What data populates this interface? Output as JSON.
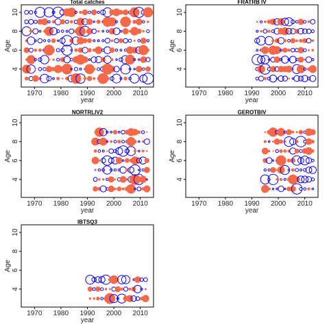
{
  "colors": {
    "positive": "#f4694a",
    "negative": "#0a00f5",
    "frame": "#000000"
  },
  "chart_data": [
    {
      "type": "scatter",
      "title": "Total catches",
      "xlabel": "year",
      "ylabel": "Age",
      "xlim": [
        1965,
        2015
      ],
      "ylim": [
        2.1,
        10.8
      ],
      "xticks": [
        "1970",
        "1980",
        "1990",
        "2000",
        "2010"
      ],
      "yticks": [
        "4",
        "6",
        "8",
        "10"
      ],
      "ages": [
        3,
        4,
        5,
        6,
        7,
        8,
        9,
        10
      ],
      "year_range": [
        1967,
        2013
      ],
      "grid": false
    },
    {
      "type": "scatter",
      "title": "FRATRB IV",
      "xlabel": "year",
      "ylabel": "Age",
      "xlim": [
        1965,
        2015
      ],
      "ylim": [
        2.1,
        10.8
      ],
      "xticks": [
        "1970",
        "1980",
        "1990",
        "2000",
        "2010"
      ],
      "yticks": [
        "4",
        "6",
        "8",
        "10"
      ],
      "ages": [
        3,
        4,
        5,
        6,
        7,
        8,
        9
      ],
      "year_range": [
        1992,
        2013
      ],
      "grid": false
    },
    {
      "type": "scatter",
      "title": "NORTRLIV2",
      "xlabel": "year",
      "ylabel": "Age",
      "xlim": [
        1965,
        2015
      ],
      "ylim": [
        2.1,
        10.8
      ],
      "xticks": [
        "1970",
        "1980",
        "1990",
        "2000",
        "2010"
      ],
      "yticks": [
        "4",
        "6",
        "8",
        "10"
      ],
      "ages": [
        3,
        4,
        5,
        6,
        7,
        8,
        9
      ],
      "year_range": [
        1993,
        2013
      ],
      "grid": false
    },
    {
      "type": "scatter",
      "title": "GEROTBIV",
      "xlabel": "year",
      "ylabel": "Age",
      "xlim": [
        1965,
        2015
      ],
      "ylim": [
        2.1,
        10.8
      ],
      "xticks": [
        "1970",
        "1980",
        "1990",
        "2000",
        "2010"
      ],
      "yticks": [
        "4",
        "6",
        "8",
        "10"
      ],
      "ages": [
        3,
        4,
        5,
        6,
        7,
        8,
        9
      ],
      "year_range": [
        1995,
        2013
      ],
      "grid": false
    },
    {
      "type": "scatter",
      "title": "IBTSQ3",
      "xlabel": "year",
      "ylabel": "Age",
      "xlim": [
        1965,
        2015
      ],
      "ylim": [
        2.1,
        10.8
      ],
      "xticks": [
        "1970",
        "1980",
        "1990",
        "2000",
        "2010"
      ],
      "yticks": [
        "4",
        "6",
        "8",
        "10"
      ],
      "ages": [
        3,
        4,
        5
      ],
      "year_range": [
        1991,
        2013
      ],
      "grid": false
    }
  ]
}
